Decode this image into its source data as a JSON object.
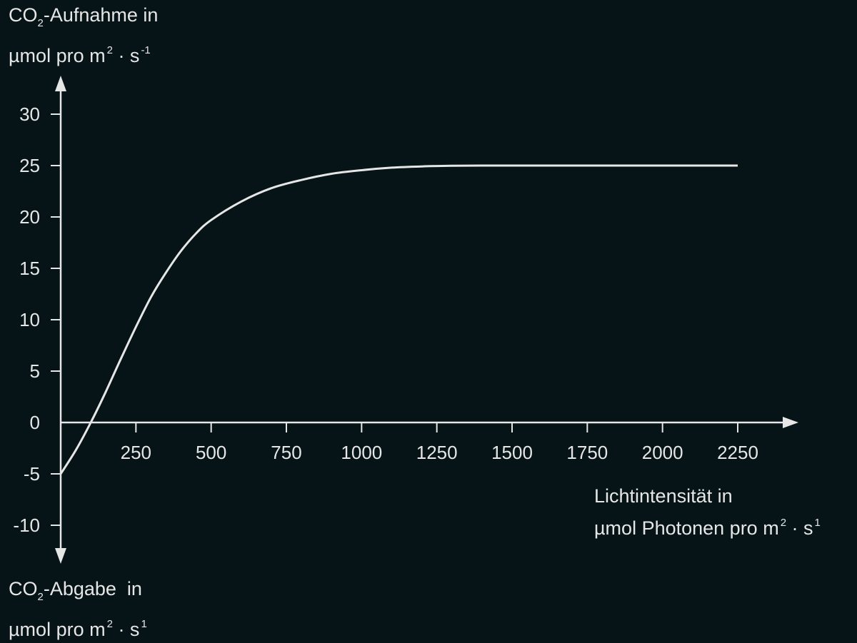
{
  "colors": {
    "background": "#061417",
    "foreground": "#e6e6e6"
  },
  "labels": {
    "y_top": {
      "line1_pre": "CO",
      "line1_sub": "2",
      "line1_post": "-Aufnahme in",
      "line2_pre": "µmol pro m",
      "line2_sup1": "2",
      "line2_mid": " · s",
      "line2_sup2": "-1"
    },
    "y_bottom": {
      "line1_pre": "CO",
      "line1_sub": "2",
      "line1_post": "-Abgabe  in",
      "line2_pre": "µmol pro m",
      "line2_sup1": "2",
      "line2_mid": " · s",
      "line2_sup2": "1"
    },
    "x": {
      "line1": "Lichtintensität in",
      "line2_pre": "µmol Photonen pro m",
      "line2_sup1": "2",
      "line2_mid": " · s",
      "line2_sup2": "1"
    }
  },
  "chart_data": {
    "type": "line",
    "title": "",
    "xlim": [
      0,
      2450
    ],
    "ylim": [
      -13,
      33
    ],
    "x_ticks": [
      250,
      500,
      750,
      1000,
      1250,
      1500,
      1750,
      2000,
      2250
    ],
    "y_ticks": [
      -10,
      -5,
      0,
      5,
      10,
      15,
      20,
      25,
      30
    ],
    "grid": false,
    "series": [
      {
        "x": [
          0,
          50,
          100,
          150,
          200,
          250,
          300,
          350,
          400,
          450,
          500,
          600,
          700,
          800,
          900,
          1000,
          1100,
          1200,
          1300,
          1400,
          1500,
          1750,
          2000,
          2250
        ],
        "y": [
          -5,
          -2.7,
          0,
          3,
          6.2,
          9.3,
          12.2,
          14.6,
          16.7,
          18.4,
          19.7,
          21.5,
          22.8,
          23.6,
          24.2,
          24.55,
          24.8,
          24.92,
          24.98,
          25,
          25,
          25,
          25,
          25
        ]
      }
    ]
  }
}
